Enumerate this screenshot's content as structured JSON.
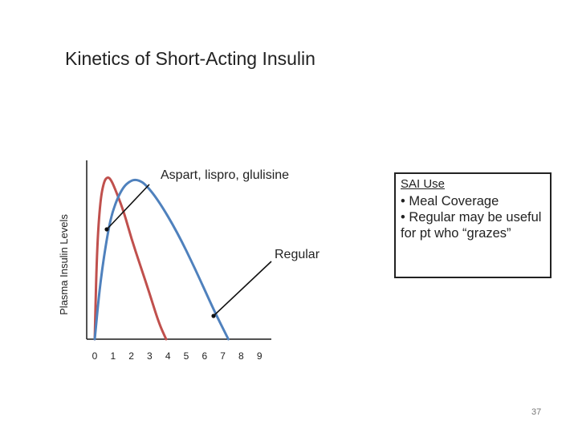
{
  "slide": {
    "title": "Kinetics of Short-Acting Insulin",
    "page_number": "37"
  },
  "sai_box": {
    "heading": "SAI Use",
    "items": [
      "• Meal Coverage",
      "• Regular may be useful for pt who “grazes”"
    ]
  },
  "chart_data": {
    "type": "line",
    "title": "",
    "xlabel": "",
    "ylabel": "Plasma Insulin Levels",
    "x_ticks": [
      "0",
      "1",
      "2",
      "3",
      "4",
      "5",
      "6",
      "7",
      "8",
      "9"
    ],
    "xlim": [
      0,
      9.5
    ],
    "ylim": [
      0,
      1.1
    ],
    "grid": false,
    "legend": "none",
    "series": [
      {
        "name": "Aspart, lispro, glulisine",
        "color": "#c0504d",
        "x": [
          0,
          0.12,
          0.3,
          0.5,
          0.7,
          0.9,
          1.2,
          1.6,
          2.0,
          2.5,
          3.0,
          3.5,
          3.9
        ],
        "y": [
          0,
          0.55,
          0.85,
          0.97,
          1.0,
          0.98,
          0.9,
          0.78,
          0.62,
          0.45,
          0.28,
          0.1,
          0
        ]
      },
      {
        "name": "Regular",
        "color": "#4f81bd",
        "x": [
          0,
          0.3,
          0.7,
          1.0,
          1.5,
          2.0,
          2.4,
          2.8,
          3.5,
          4.5,
          5.5,
          6.5,
          7.3
        ],
        "y": [
          0,
          0.35,
          0.65,
          0.8,
          0.93,
          0.98,
          0.98,
          0.95,
          0.85,
          0.66,
          0.43,
          0.18,
          0
        ]
      }
    ],
    "annotations": [
      {
        "text": "Aspart, lispro, glulisine",
        "series": 0
      },
      {
        "text": "Regular",
        "series": 1
      }
    ]
  }
}
